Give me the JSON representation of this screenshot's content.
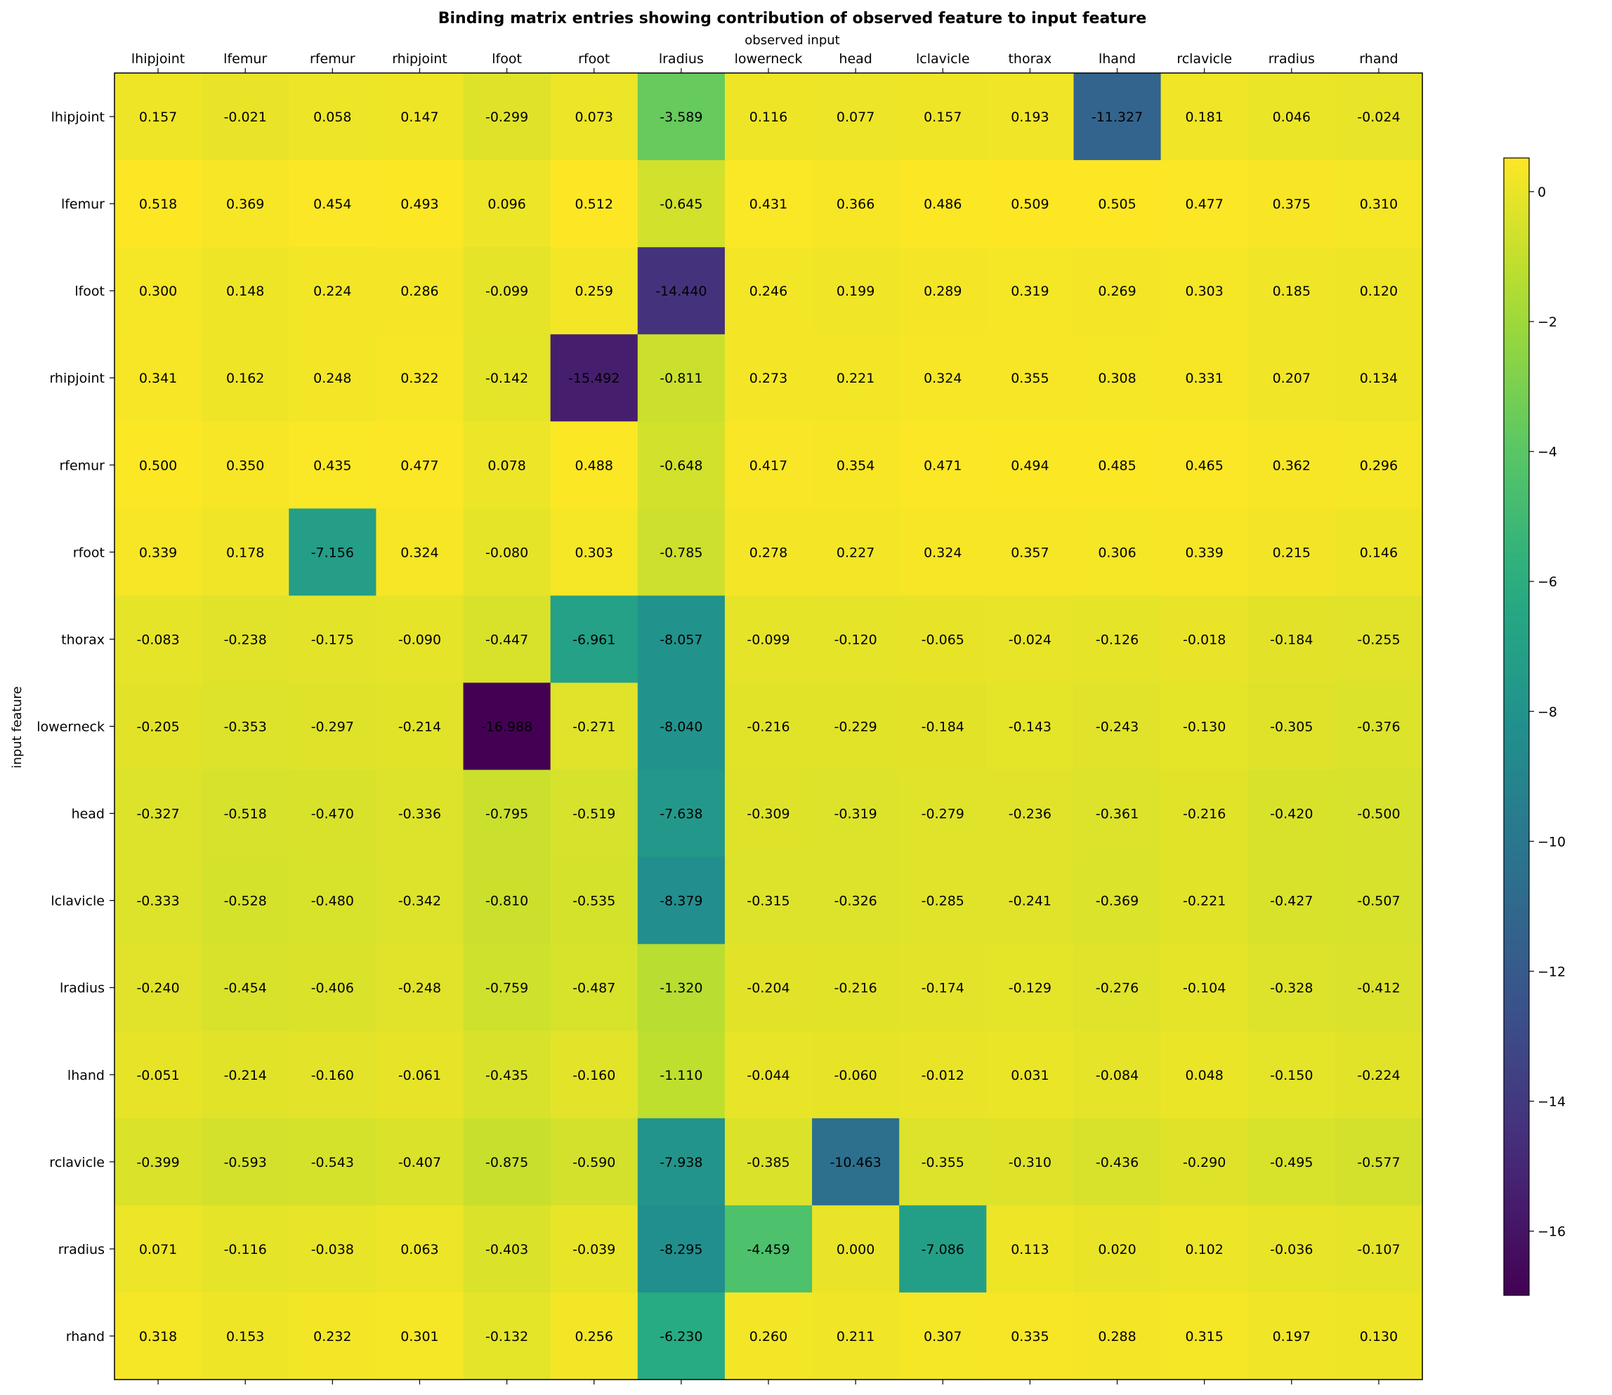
{
  "chart_data": {
    "type": "heatmap",
    "title": "Binding matrix entries showing contribution of observed feature to input feature",
    "xlabel": "observed input",
    "ylabel": "input feature",
    "x_categories": [
      "lhipjoint",
      "lfemur",
      "rfemur",
      "rhipjoint",
      "lfoot",
      "rfoot",
      "lradius",
      "lowerneck",
      "head",
      "lclavicle",
      "thorax",
      "lhand",
      "rclavicle",
      "rradius",
      "rhand"
    ],
    "y_categories": [
      "lhipjoint",
      "lfemur",
      "lfoot",
      "rhipjoint",
      "rfemur",
      "rfoot",
      "thorax",
      "lowerneck",
      "head",
      "lclavicle",
      "lradius",
      "lhand",
      "rclavicle",
      "rradius",
      "rhand"
    ],
    "values": [
      [
        0.157,
        -0.021,
        0.058,
        0.147,
        -0.299,
        0.073,
        -3.589,
        0.116,
        0.077,
        0.157,
        0.193,
        -11.327,
        0.181,
        0.046,
        -0.024
      ],
      [
        0.518,
        0.369,
        0.454,
        0.493,
        0.096,
        0.512,
        -0.645,
        0.431,
        0.366,
        0.486,
        0.509,
        0.505,
        0.477,
        0.375,
        0.31
      ],
      [
        0.3,
        0.148,
        0.224,
        0.286,
        -0.099,
        0.259,
        -14.44,
        0.246,
        0.199,
        0.289,
        0.319,
        0.269,
        0.303,
        0.185,
        0.12
      ],
      [
        0.341,
        0.162,
        0.248,
        0.322,
        -0.142,
        -15.492,
        -0.811,
        0.273,
        0.221,
        0.324,
        0.355,
        0.308,
        0.331,
        0.207,
        0.134
      ],
      [
        0.5,
        0.35,
        0.435,
        0.477,
        0.078,
        0.488,
        -0.648,
        0.417,
        0.354,
        0.471,
        0.494,
        0.485,
        0.465,
        0.362,
        0.296
      ],
      [
        0.339,
        0.178,
        -7.156,
        0.324,
        -0.08,
        0.303,
        -0.785,
        0.278,
        0.227,
        0.324,
        0.357,
        0.306,
        0.339,
        0.215,
        0.146
      ],
      [
        -0.083,
        -0.238,
        -0.175,
        -0.09,
        -0.447,
        -6.961,
        -8.057,
        -0.099,
        -0.12,
        -0.065,
        -0.024,
        -0.126,
        -0.018,
        -0.184,
        -0.255
      ],
      [
        -0.205,
        -0.353,
        -0.297,
        -0.214,
        -16.988,
        -0.271,
        -8.04,
        -0.216,
        -0.229,
        -0.184,
        -0.143,
        -0.243,
        -0.13,
        -0.305,
        -0.376
      ],
      [
        -0.327,
        -0.518,
        -0.47,
        -0.336,
        -0.795,
        -0.519,
        -7.638,
        -0.309,
        -0.319,
        -0.279,
        -0.236,
        -0.361,
        -0.216,
        -0.42,
        -0.5
      ],
      [
        -0.333,
        -0.528,
        -0.48,
        -0.342,
        -0.81,
        -0.535,
        -8.379,
        -0.315,
        -0.326,
        -0.285,
        -0.241,
        -0.369,
        -0.221,
        -0.427,
        -0.507
      ],
      [
        -0.24,
        -0.454,
        -0.406,
        -0.248,
        -0.759,
        -0.487,
        -1.32,
        -0.204,
        -0.216,
        -0.174,
        -0.129,
        -0.276,
        -0.104,
        -0.328,
        -0.412
      ],
      [
        -0.051,
        -0.214,
        -0.16,
        -0.061,
        -0.435,
        -0.16,
        -1.11,
        -0.044,
        -0.06,
        -0.012,
        0.031,
        -0.084,
        0.048,
        -0.15,
        -0.224
      ],
      [
        -0.399,
        -0.593,
        -0.543,
        -0.407,
        -0.875,
        -0.59,
        -7.938,
        -0.385,
        -10.463,
        -0.355,
        -0.31,
        -0.436,
        -0.29,
        -0.495,
        -0.577
      ],
      [
        0.071,
        -0.116,
        -0.038,
        0.063,
        -0.403,
        -0.039,
        -8.295,
        -4.459,
        0.0,
        -7.086,
        0.113,
        0.02,
        0.102,
        -0.036,
        -0.107
      ],
      [
        0.318,
        0.153,
        0.232,
        0.301,
        -0.132,
        0.256,
        -6.23,
        0.26,
        0.211,
        0.307,
        0.335,
        0.288,
        0.315,
        0.197,
        0.13
      ]
    ],
    "colormap": "viridis",
    "vmin": -16.988,
    "vmax": 0.518,
    "colorbar_ticks": [
      0,
      -2,
      -4,
      -6,
      -8,
      -10,
      -12,
      -14,
      -16
    ],
    "colorbar_tick_labels": [
      "0",
      "−2",
      "−4",
      "−6",
      "−8",
      "−10",
      "−12",
      "−14",
      "−16"
    ],
    "x_ticks_position": "top",
    "grid": false
  }
}
